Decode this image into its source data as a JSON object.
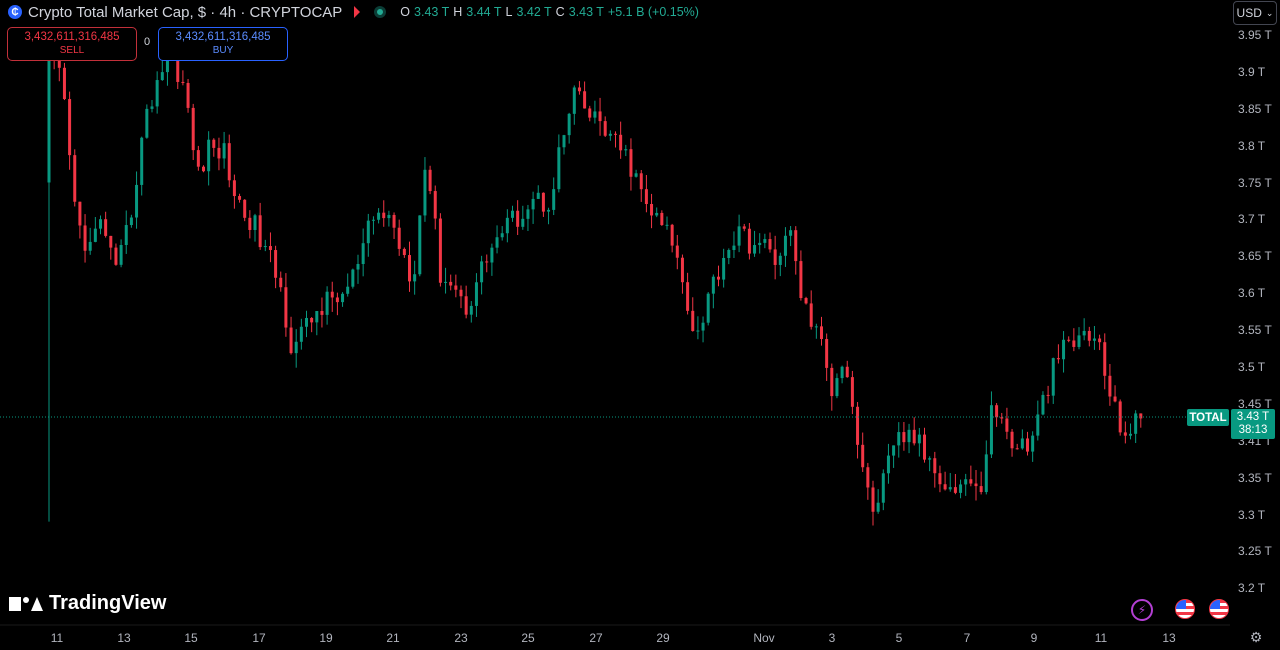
{
  "header": {
    "symbol_icon": "bitcoin-coin-icon",
    "title": "Crypto Total Market Cap, $ · 4h · CRYPTOCAP",
    "ohlc": {
      "o_label": "O",
      "o_value": "3.43 T",
      "h_label": "H",
      "h_value": "3.44 T",
      "l_label": "L",
      "l_value": "3.42 T",
      "c_label": "C",
      "c_value": "3.43 T",
      "change": "+5.1 B (+0.15%)"
    }
  },
  "trade": {
    "sell_price": "3,432,611,316,485",
    "sell_label": "SELL",
    "spread": "0",
    "buy_price": "3,432,611,316,485",
    "buy_label": "BUY"
  },
  "currency_selector": {
    "value": "USD"
  },
  "price_axis": {
    "ticks": [
      "3.95 T",
      "3.9 T",
      "3.85 T",
      "3.8 T",
      "3.75 T",
      "3.7 T",
      "3.65 T",
      "3.6 T",
      "3.55 T",
      "3.5 T",
      "3.45 T",
      "3.41 T",
      "3.35 T",
      "3.3 T",
      "3.25 T",
      "3.2 T"
    ]
  },
  "time_axis": {
    "ticks": [
      "11",
      "13",
      "15",
      "17",
      "19",
      "21",
      "23",
      "25",
      "27",
      "29",
      "Nov",
      "3",
      "5",
      "7",
      "9",
      "11",
      "13"
    ]
  },
  "last_price": {
    "series_label": "TOTAL",
    "price": "3.43 T",
    "countdown": "38:13"
  },
  "logo": {
    "text": "TradingView"
  },
  "colors": {
    "up": "#089981",
    "down": "#f23645",
    "background": "#000000"
  },
  "chart_data": {
    "type": "candlestick",
    "symbol": "TOTAL",
    "interval": "4h",
    "ylim": [
      3.18,
      3.97
    ],
    "x_ticks": [
      "11",
      "13",
      "15",
      "17",
      "19",
      "21",
      "23",
      "25",
      "27",
      "29",
      "Nov",
      "3",
      "5",
      "7",
      "9",
      "11",
      "13"
    ],
    "y_ticks": [
      3.95,
      3.9,
      3.85,
      3.8,
      3.75,
      3.7,
      3.65,
      3.6,
      3.55,
      3.5,
      3.45,
      3.41,
      3.35,
      3.3,
      3.25,
      3.2
    ],
    "last_price": 3.43,
    "anchors": [
      3.92,
      3.88,
      3.7,
      3.66,
      3.7,
      3.62,
      3.7,
      3.82,
      3.89,
      3.93,
      3.88,
      3.76,
      3.8,
      3.79,
      3.72,
      3.7,
      3.66,
      3.62,
      3.53,
      3.55,
      3.58,
      3.59,
      3.6,
      3.64,
      3.7,
      3.71,
      3.67,
      3.62,
      3.79,
      3.63,
      3.61,
      3.58,
      3.63,
      3.67,
      3.69,
      3.71,
      3.73,
      3.72,
      3.8,
      3.87,
      3.84,
      3.83,
      3.8,
      3.78,
      3.73,
      3.7,
      3.68,
      3.62,
      3.54,
      3.6,
      3.65,
      3.68,
      3.67,
      3.66,
      3.65,
      3.68,
      3.58,
      3.55,
      3.47,
      3.52,
      3.4,
      3.3,
      3.35,
      3.4,
      3.41,
      3.38,
      3.36,
      3.33,
      3.35,
      3.32,
      3.45,
      3.41,
      3.39,
      3.4,
      3.47,
      3.52,
      3.53,
      3.55,
      3.52,
      3.44,
      3.41,
      3.43
    ]
  }
}
